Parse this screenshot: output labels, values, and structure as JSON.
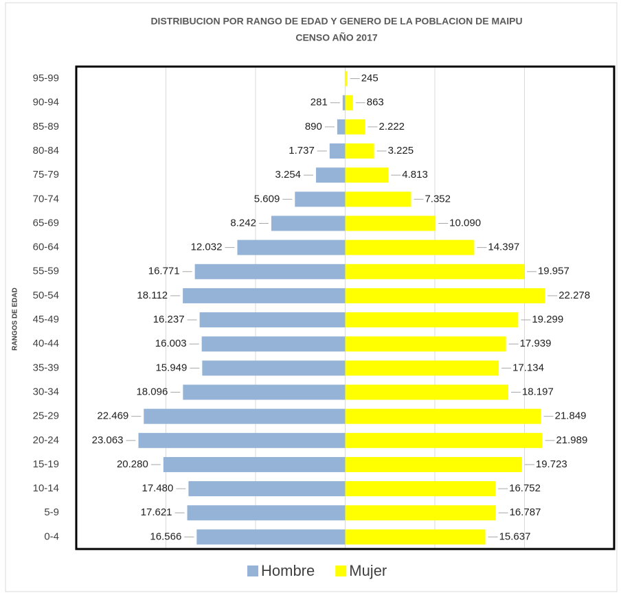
{
  "chart_data": {
    "type": "pyramid",
    "title": "DISTRIBUCION POR RANGO DE EDAD Y GENERO DE LA POBLACION DE MAIPU",
    "subtitle": "CENSO AÑO 2017",
    "y_label": "RANGOS DE EDAD",
    "categories": [
      "0-4",
      "5-9",
      "10-14",
      "15-19",
      "20-24",
      "25-29",
      "30-34",
      "35-39",
      "40-44",
      "45-49",
      "50-54",
      "55-59",
      "60-64",
      "65-69",
      "70-74",
      "75-79",
      "80-84",
      "85-89",
      "90-94",
      "95-99"
    ],
    "series": [
      {
        "name": "Hombre",
        "color": "#95b3d7",
        "side": "left",
        "values": [
          16566,
          17621,
          17480,
          20280,
          23063,
          22469,
          18096,
          15949,
          16003,
          16237,
          18112,
          16771,
          12032,
          8242,
          5609,
          3254,
          1737,
          890,
          281,
          null
        ],
        "value_labels": [
          "16.566",
          "17.621",
          "17.480",
          "20.280",
          "23.063",
          "22.469",
          "18.096",
          "15.949",
          "16.003",
          "16.237",
          "18.112",
          "16.771",
          "12.032",
          "8.242",
          "5.609",
          "3.254",
          "1.737",
          "890",
          "281",
          null
        ]
      },
      {
        "name": "Mujer",
        "color": "#ffff00",
        "side": "right",
        "values": [
          15637,
          16787,
          16752,
          19723,
          21989,
          21849,
          18197,
          17134,
          17939,
          19299,
          22278,
          19957,
          14397,
          10090,
          7352,
          4813,
          3225,
          2222,
          863,
          245
        ],
        "value_labels": [
          "15.637",
          "16.787",
          "16.752",
          "19.723",
          "21.989",
          "21.849",
          "18.197",
          "17.134",
          "17.939",
          "19.299",
          "22.278",
          "19.957",
          "14.397",
          "10.090",
          "7.352",
          "4.813",
          "3.225",
          "2.222",
          "863",
          "245"
        ]
      }
    ],
    "xlim": [
      -30000,
      30000
    ],
    "xticks": [
      -20000,
      -10000,
      0,
      10000,
      20000
    ],
    "grid": true
  }
}
